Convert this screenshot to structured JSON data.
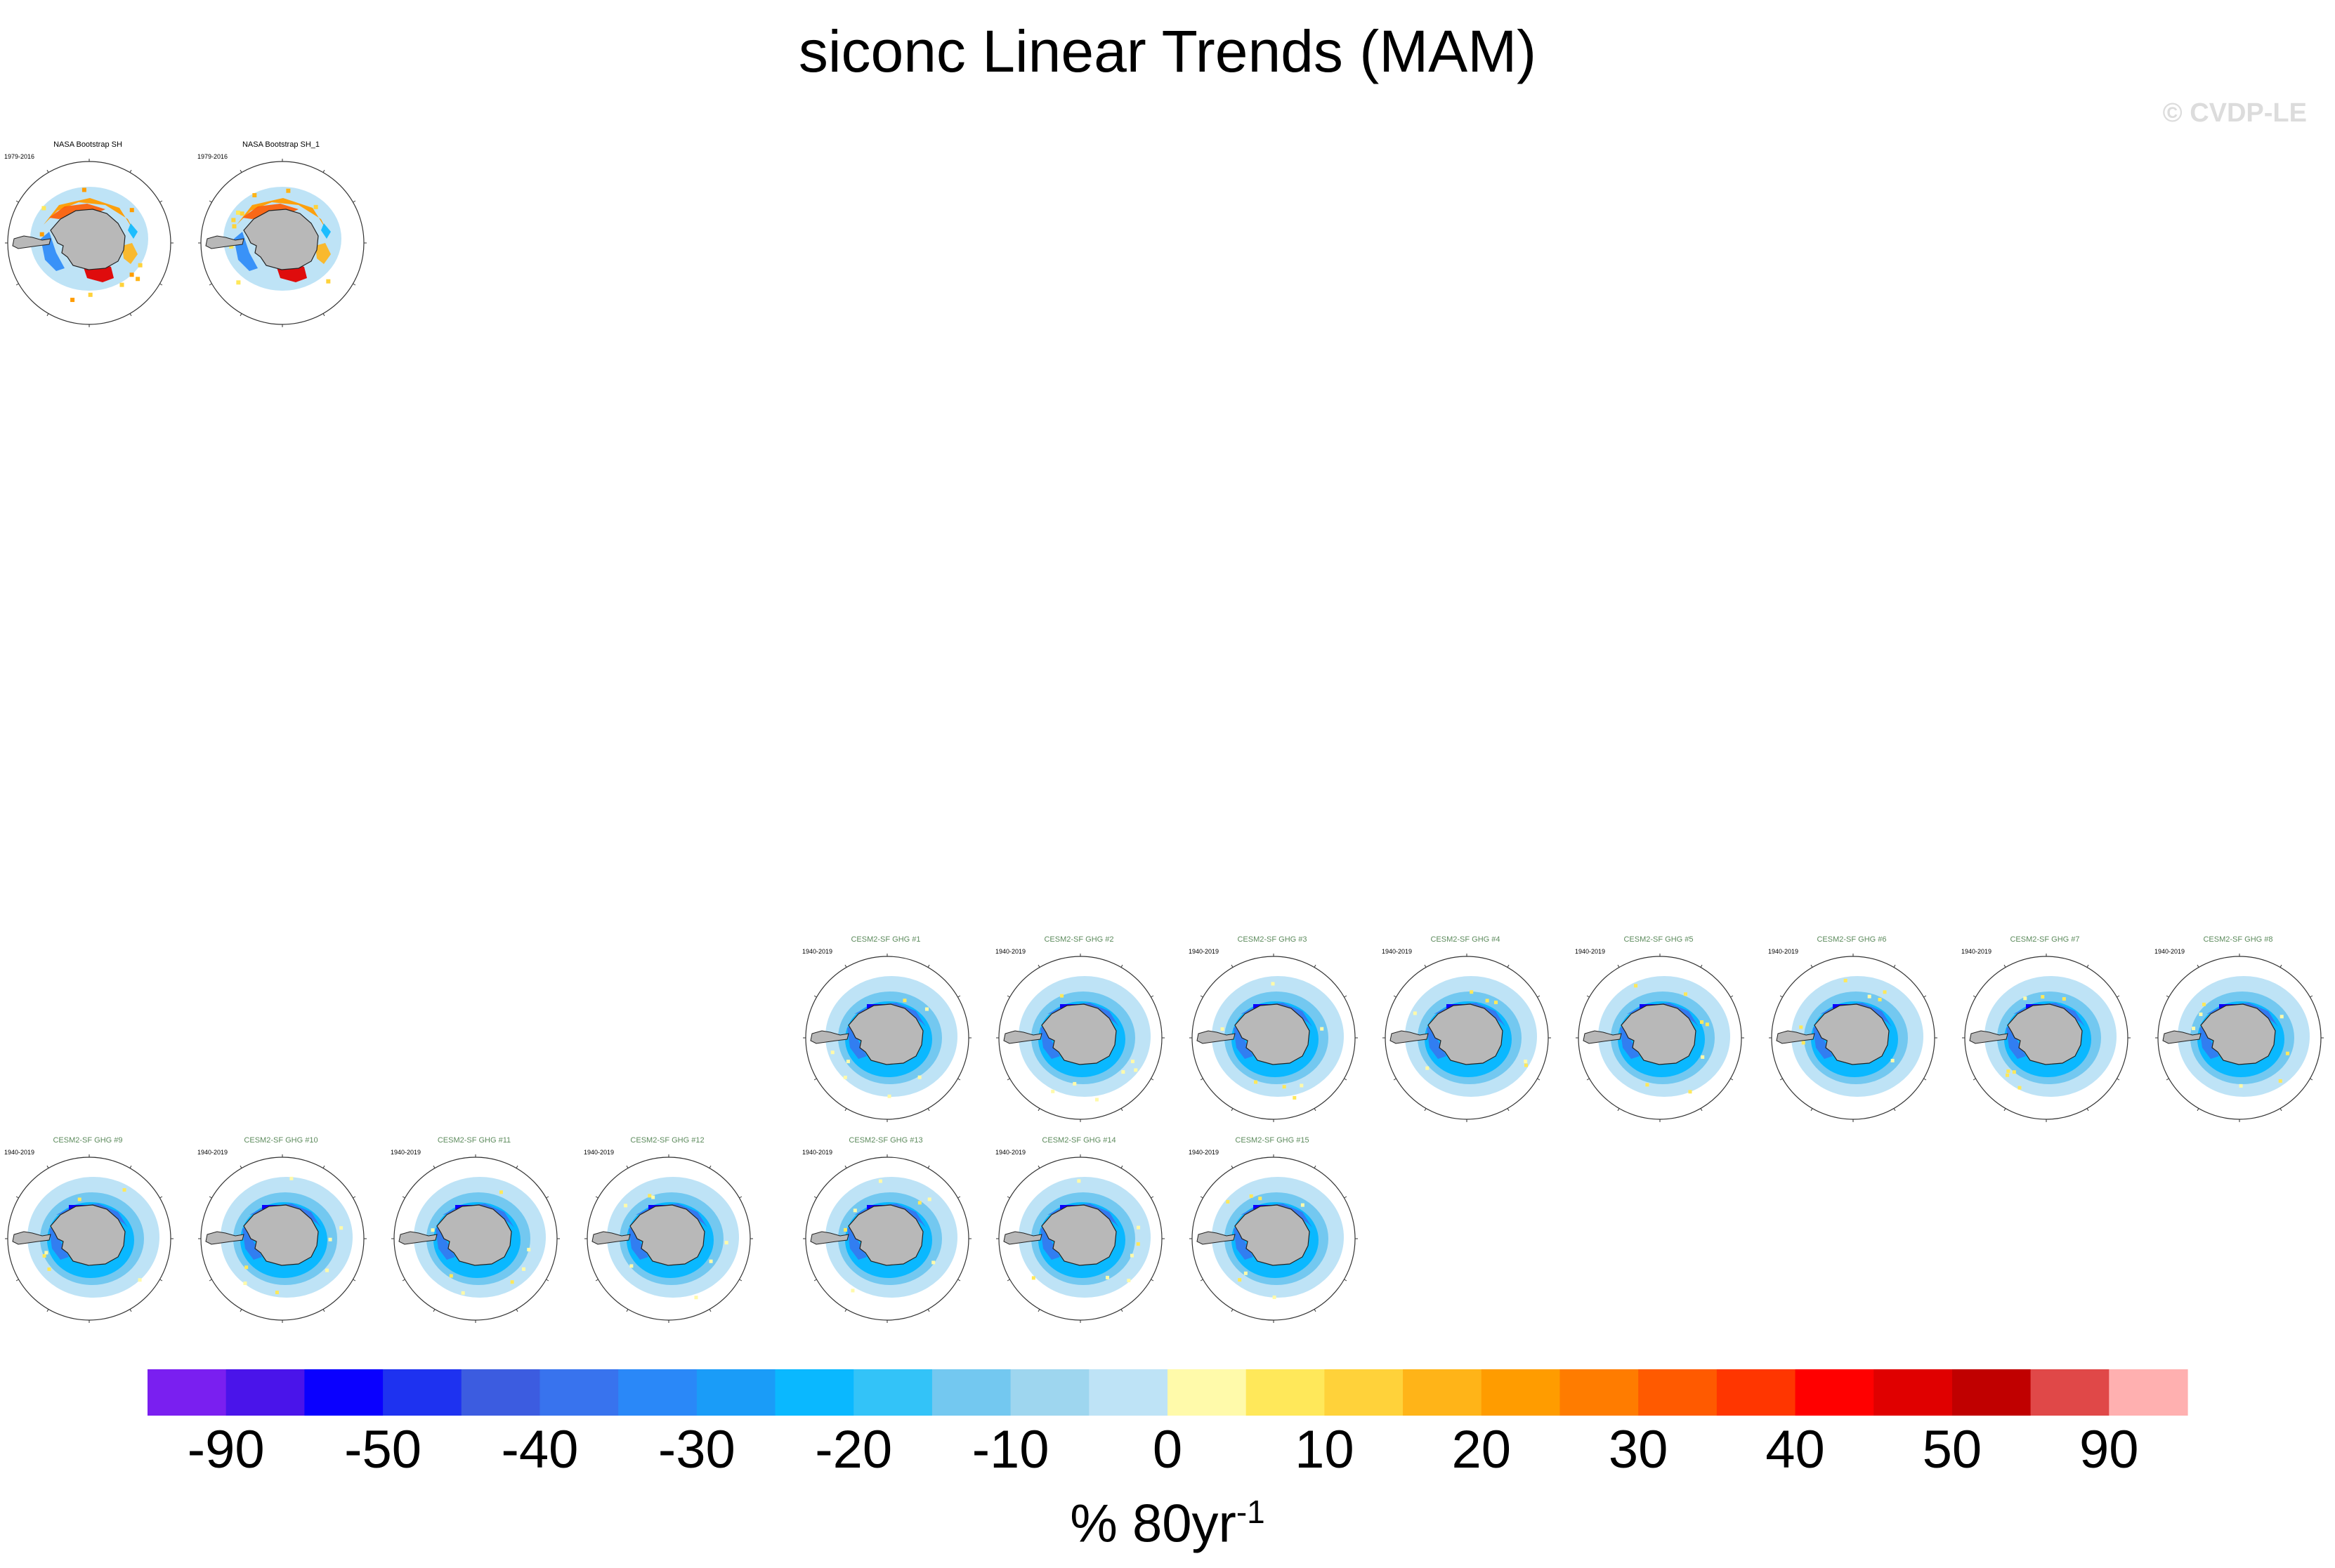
{
  "title": "siconc Linear Trends (MAM)",
  "copyright": "© CVDP-LE",
  "units_main": "% 80yr",
  "units_exp": "-1",
  "chart_data": {
    "type": "heatmap",
    "title": "siconc Linear Trends (MAM)",
    "projection": "south polar stereographic",
    "colorbar": {
      "label": "% 80yr-1",
      "tick_labels": [
        "-90",
        "-50",
        "-40",
        "-30",
        "-20",
        "-10",
        "0",
        "10",
        "20",
        "30",
        "40",
        "50",
        "90"
      ],
      "colors": [
        "#7a1ff0",
        "#4a14ea",
        "#0a00ff",
        "#1e32f0",
        "#3c5ce0",
        "#3873ee",
        "#2a88f8",
        "#1a9cf8",
        "#0ab8ff",
        "#33c3f8",
        "#73c8f0",
        "#9ed6ef",
        "#bee3f6",
        "#fffaaa",
        "#ffe85a",
        "#ffd23a",
        "#ffb418",
        "#ff9c00",
        "#ff7c00",
        "#ff5a00",
        "#ff3600",
        "#ff0000",
        "#e00000",
        "#c00000",
        "#e04848",
        "#ffb0b0"
      ]
    },
    "panels": [
      {
        "title": "NASA Bootstrap SH",
        "period": "1979-2016",
        "source": "obs",
        "pattern": "obs"
      },
      {
        "title": "NASA Bootstrap SH_1",
        "period": "1979-2016",
        "source": "obs",
        "pattern": "obs"
      },
      {
        "title": "CESM2-SF GHG #1",
        "period": "1940-2019",
        "source": "model",
        "pattern": "model"
      },
      {
        "title": "CESM2-SF GHG #2",
        "period": "1940-2019",
        "source": "model",
        "pattern": "model"
      },
      {
        "title": "CESM2-SF GHG #3",
        "period": "1940-2019",
        "source": "model",
        "pattern": "model"
      },
      {
        "title": "CESM2-SF GHG #4",
        "period": "1940-2019",
        "source": "model",
        "pattern": "model"
      },
      {
        "title": "CESM2-SF GHG #5",
        "period": "1940-2019",
        "source": "model",
        "pattern": "model"
      },
      {
        "title": "CESM2-SF GHG #6",
        "period": "1940-2019",
        "source": "model",
        "pattern": "model"
      },
      {
        "title": "CESM2-SF GHG #7",
        "period": "1940-2019",
        "source": "model",
        "pattern": "model"
      },
      {
        "title": "CESM2-SF GHG #8",
        "period": "1940-2019",
        "source": "model",
        "pattern": "model"
      },
      {
        "title": "CESM2-SF GHG #9",
        "period": "1940-2019",
        "source": "model",
        "pattern": "model"
      },
      {
        "title": "CESM2-SF GHG #10",
        "period": "1940-2019",
        "source": "model",
        "pattern": "model"
      },
      {
        "title": "CESM2-SF GHG #11",
        "period": "1940-2019",
        "source": "model",
        "pattern": "model"
      },
      {
        "title": "CESM2-SF GHG #12",
        "period": "1940-2019",
        "source": "model",
        "pattern": "model"
      },
      {
        "title": "CESM2-SF GHG #13",
        "period": "1940-2019",
        "source": "model",
        "pattern": "model"
      },
      {
        "title": "CESM2-SF GHG #14",
        "period": "1940-2019",
        "source": "model",
        "pattern": "model"
      },
      {
        "title": "CESM2-SF GHG #15",
        "period": "1940-2019",
        "source": "model",
        "pattern": "model"
      }
    ]
  }
}
